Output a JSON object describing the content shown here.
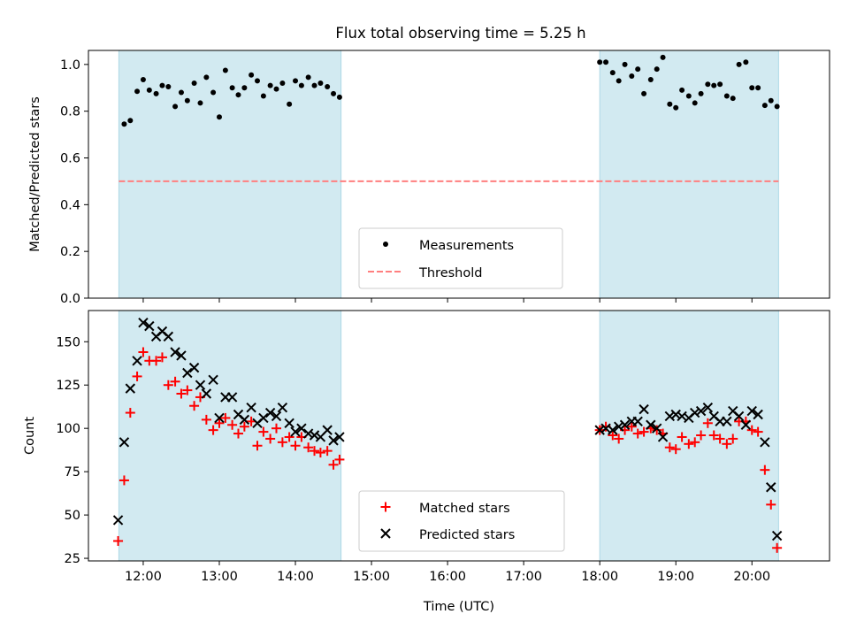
{
  "title": "Flux total observing time = 5.25 h",
  "colors": {
    "shade": "#add8e6",
    "threshold": "#ff7f7f",
    "matched": "#ff0000",
    "predicted": "#000000",
    "measurements": "#000000"
  },
  "chart_data": [
    {
      "type": "scatter",
      "panel": "top",
      "ylabel": "Matched/Predicted stars",
      "ylim": [
        0,
        1.06
      ],
      "yticks": [
        "0.0",
        "0.2",
        "0.4",
        "0.6",
        "0.8",
        "1.0"
      ],
      "ytick_values": [
        0,
        0.2,
        0.4,
        0.6,
        0.8,
        1.0
      ],
      "xlim_hours": [
        11.28,
        21.02
      ],
      "shaded_spans_hours": [
        [
          11.68,
          14.6
        ],
        [
          18.0,
          20.35
        ]
      ],
      "threshold": 0.5,
      "legend": [
        "Measurements",
        "Threshold"
      ],
      "legend_position": "bottom-center",
      "series": [
        {
          "name": "Measurements",
          "x": [
            11.75,
            11.83,
            11.92,
            12.0,
            12.08,
            12.17,
            12.25,
            12.33,
            12.42,
            12.5,
            12.58,
            12.67,
            12.75,
            12.83,
            12.92,
            13.0,
            13.08,
            13.17,
            13.25,
            13.33,
            13.42,
            13.5,
            13.58,
            13.67,
            13.75,
            13.83,
            13.92,
            14.0,
            14.08,
            14.17,
            14.25,
            14.33,
            14.42,
            14.5,
            14.58,
            18.0,
            18.08,
            18.17,
            18.25,
            18.33,
            18.42,
            18.5,
            18.58,
            18.67,
            18.75,
            18.83,
            18.92,
            19.0,
            19.08,
            19.17,
            19.25,
            19.33,
            19.42,
            19.5,
            19.58,
            19.67,
            19.75,
            19.83,
            19.92,
            20.0,
            20.08,
            20.17,
            20.25,
            20.33
          ],
          "y": [
            0.745,
            0.76,
            0.885,
            0.935,
            0.89,
            0.875,
            0.91,
            0.905,
            0.82,
            0.88,
            0.845,
            0.92,
            0.835,
            0.945,
            0.88,
            0.775,
            0.975,
            0.9,
            0.87,
            0.9,
            0.955,
            0.93,
            0.865,
            0.91,
            0.895,
            0.92,
            0.83,
            0.93,
            0.91,
            0.945,
            0.91,
            0.92,
            0.905,
            0.875,
            0.86,
            1.01,
            1.01,
            0.965,
            0.93,
            1.0,
            0.95,
            0.98,
            0.875,
            0.935,
            0.98,
            1.03,
            0.83,
            0.815,
            0.89,
            0.865,
            0.835,
            0.875,
            0.915,
            0.91,
            0.915,
            0.865,
            0.855,
            1.0,
            1.01,
            0.9,
            0.9,
            0.825,
            0.845,
            0.82
          ]
        }
      ]
    },
    {
      "type": "scatter",
      "panel": "bottom",
      "xlabel": "Time (UTC)",
      "ylabel": "Count",
      "ylim": [
        23.5,
        168
      ],
      "yticks": [
        "25",
        "50",
        "75",
        "100",
        "125",
        "150"
      ],
      "ytick_values": [
        25,
        50,
        75,
        100,
        125,
        150
      ],
      "xlim_hours": [
        11.28,
        21.02
      ],
      "xticks": [
        "12:00",
        "13:00",
        "14:00",
        "15:00",
        "16:00",
        "17:00",
        "18:00",
        "19:00",
        "20:00"
      ],
      "xtick_values": [
        12,
        13,
        14,
        15,
        16,
        17,
        18,
        19,
        20
      ],
      "shaded_spans_hours": [
        [
          11.68,
          14.6
        ],
        [
          18.0,
          20.35
        ]
      ],
      "legend": [
        "Matched stars",
        "Predicted stars"
      ],
      "legend_position": "bottom-center",
      "series": [
        {
          "name": "Matched stars",
          "marker": "+",
          "x": [
            11.67,
            11.75,
            11.83,
            11.92,
            12.0,
            12.08,
            12.17,
            12.25,
            12.33,
            12.42,
            12.5,
            12.58,
            12.67,
            12.75,
            12.83,
            12.92,
            13.0,
            13.08,
            13.17,
            13.25,
            13.33,
            13.42,
            13.5,
            13.58,
            13.67,
            13.75,
            13.83,
            13.92,
            14.0,
            14.08,
            14.17,
            14.25,
            14.33,
            14.42,
            14.5,
            14.58,
            18.0,
            18.08,
            18.17,
            18.25,
            18.33,
            18.42,
            18.5,
            18.58,
            18.67,
            18.75,
            18.83,
            18.92,
            19.0,
            19.08,
            19.17,
            19.25,
            19.33,
            19.42,
            19.5,
            19.58,
            19.67,
            19.75,
            19.83,
            19.92,
            20.0,
            20.08,
            20.17,
            20.25,
            20.33
          ],
          "y": [
            35,
            70,
            109,
            130,
            144,
            139,
            139,
            141,
            125,
            127,
            120,
            122,
            113,
            118,
            105,
            99,
            103,
            106,
            102,
            97,
            101,
            104,
            90,
            98,
            94,
            100,
            92,
            95,
            90,
            95,
            89,
            87,
            86,
            87,
            79,
            82,
            99,
            101,
            96,
            94,
            99,
            101,
            97,
            98,
            100,
            99,
            97,
            89,
            88,
            95,
            91,
            92,
            96,
            103,
            96,
            94,
            91,
            94,
            104,
            104,
            99,
            98,
            76,
            56,
            31
          ]
        },
        {
          "name": "Predicted stars",
          "marker": "x",
          "x": [
            11.67,
            11.75,
            11.83,
            11.92,
            12.0,
            12.08,
            12.17,
            12.25,
            12.33,
            12.42,
            12.5,
            12.58,
            12.67,
            12.75,
            12.83,
            12.92,
            13.0,
            13.08,
            13.17,
            13.25,
            13.33,
            13.42,
            13.5,
            13.58,
            13.67,
            13.75,
            13.83,
            13.92,
            14.0,
            14.08,
            14.17,
            14.25,
            14.33,
            14.42,
            14.5,
            14.58,
            18.0,
            18.08,
            18.17,
            18.25,
            18.33,
            18.42,
            18.5,
            18.58,
            18.67,
            18.75,
            18.83,
            18.92,
            19.0,
            19.08,
            19.17,
            19.25,
            19.33,
            19.42,
            19.5,
            19.58,
            19.67,
            19.75,
            19.83,
            19.92,
            20.0,
            20.08,
            20.17,
            20.25,
            20.33
          ],
          "y": [
            47,
            92,
            123,
            139,
            161,
            159,
            153,
            156,
            153,
            144,
            142,
            132,
            135,
            125,
            120,
            128,
            106,
            118,
            118,
            108,
            105,
            112,
            103,
            106,
            109,
            107,
            112,
            103,
            98,
            100,
            97,
            96,
            95,
            99,
            93,
            95,
            99,
            100,
            99,
            101,
            102,
            104,
            104,
            111,
            102,
            100,
            95,
            107,
            108,
            107,
            106,
            109,
            110,
            112,
            107,
            104,
            104,
            110,
            107,
            102,
            110,
            108,
            92,
            66,
            38
          ]
        }
      ]
    }
  ]
}
